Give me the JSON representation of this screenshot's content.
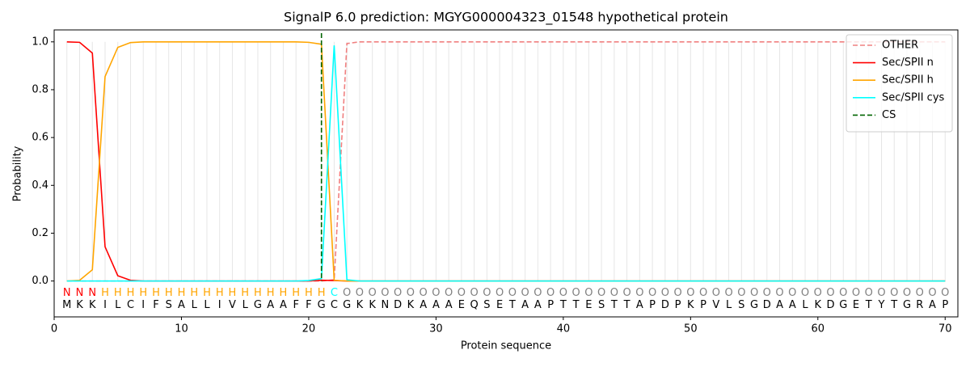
{
  "chart_data": {
    "type": "line",
    "title": "SignalP 6.0 prediction: MGYG000004323_01548 hypothetical protein",
    "x_label": "Protein sequence",
    "y_label": "Probability",
    "xlim": [
      0,
      71
    ],
    "ylim": [
      -0.15,
      1.05
    ],
    "xticks": [
      0,
      10,
      20,
      30,
      40,
      50,
      60,
      70
    ],
    "yticks": [
      {
        "value": 0,
        "label": "0.0"
      },
      {
        "value": 0.2,
        "label": "0.2"
      },
      {
        "value": 0.4,
        "label": "0.4"
      },
      {
        "value": 0.6,
        "label": "0.6"
      },
      {
        "value": 0.8,
        "label": "0.8"
      },
      {
        "value": 1,
        "label": "1.0"
      }
    ],
    "x": [
      1,
      2,
      3,
      4,
      5,
      6,
      7,
      8,
      9,
      10,
      11,
      12,
      13,
      14,
      15,
      16,
      17,
      18,
      19,
      20,
      21,
      22,
      23,
      24,
      25,
      26,
      27,
      28,
      29,
      30,
      31,
      32,
      33,
      34,
      35,
      36,
      37,
      38,
      39,
      40,
      41,
      42,
      43,
      44,
      45,
      46,
      47,
      48,
      49,
      50,
      51,
      52,
      53,
      54,
      55,
      56,
      57,
      58,
      59,
      60,
      61,
      62,
      63,
      64,
      65,
      66,
      67,
      68,
      69,
      70
    ],
    "sequence": [
      "M",
      "K",
      "K",
      "I",
      "L",
      "C",
      "I",
      "F",
      "S",
      "A",
      "L",
      "L",
      "I",
      "V",
      "L",
      "G",
      "A",
      "A",
      "F",
      "F",
      "G",
      "C",
      "G",
      "K",
      "K",
      "N",
      "D",
      "K",
      "A",
      "A",
      "A",
      "E",
      "Q",
      "S",
      "E",
      "T",
      "A",
      "A",
      "P",
      "T",
      "T",
      "E",
      "S",
      "T",
      "T",
      "A",
      "P",
      "D",
      "P",
      "K",
      "P",
      "V",
      "L",
      "S",
      "G",
      "D",
      "A",
      "A",
      "L",
      "K",
      "D",
      "G",
      "E",
      "T",
      "Y",
      "T",
      "G",
      "R",
      "A",
      "P"
    ],
    "regions": [
      "N",
      "N",
      "N",
      "H",
      "H",
      "H",
      "H",
      "H",
      "H",
      "H",
      "H",
      "H",
      "H",
      "H",
      "H",
      "H",
      "H",
      "H",
      "H",
      "H",
      "H",
      "C",
      "O",
      "O",
      "O",
      "O",
      "O",
      "O",
      "O",
      "O",
      "O",
      "O",
      "O",
      "O",
      "O",
      "O",
      "O",
      "O",
      "O",
      "O",
      "O",
      "O",
      "O",
      "O",
      "O",
      "O",
      "O",
      "O",
      "O",
      "O",
      "O",
      "O",
      "O",
      "O",
      "O",
      "O",
      "O",
      "O",
      "O",
      "O",
      "O",
      "O",
      "O",
      "O",
      "O",
      "O",
      "O",
      "O",
      "O",
      "O"
    ],
    "region_colors": {
      "N": "#ff0000",
      "H": "#ffa500",
      "C": "#00ffff",
      "O": "#808080"
    },
    "series": [
      {
        "name": "OTHER",
        "color": "#f08080",
        "linestyle": "dashed",
        "values": [
          0,
          0,
          0,
          0,
          0,
          0,
          0,
          0,
          0,
          0,
          0,
          0,
          0,
          0,
          0,
          0,
          0,
          0,
          0,
          0,
          0,
          0.005,
          0.993,
          1,
          1,
          1,
          1,
          1,
          1,
          1,
          1,
          1,
          1,
          1,
          1,
          1,
          1,
          1,
          1,
          1,
          1,
          1,
          1,
          1,
          1,
          1,
          1,
          1,
          1,
          1,
          1,
          1,
          1,
          1,
          1,
          1,
          1,
          1,
          1,
          1,
          1,
          1,
          1,
          1,
          1,
          1,
          1,
          1,
          1,
          1
        ]
      },
      {
        "name": "Sec/SPII n",
        "color": "#ff0000",
        "linestyle": "solid",
        "values": [
          1,
          0.998,
          0.953,
          0.143,
          0.022,
          0.003,
          0,
          0,
          0,
          0,
          0,
          0,
          0,
          0,
          0,
          0,
          0,
          0,
          0,
          0,
          0.003,
          0.002,
          0,
          0,
          0,
          0,
          0,
          0,
          0,
          0,
          0,
          0,
          0,
          0,
          0,
          0,
          0,
          0,
          0,
          0,
          0,
          0,
          0,
          0,
          0,
          0,
          0,
          0,
          0,
          0,
          0,
          0,
          0,
          0,
          0,
          0,
          0,
          0,
          0,
          0,
          0,
          0,
          0,
          0,
          0,
          0,
          0,
          0,
          0,
          0
        ]
      },
      {
        "name": "Sec/SPII h",
        "color": "#ffa500",
        "linestyle": "solid",
        "values": [
          0,
          0.003,
          0.047,
          0.855,
          0.977,
          0.997,
          1,
          1,
          1,
          1,
          1,
          1,
          1,
          1,
          1,
          1,
          1,
          1,
          1,
          0.998,
          0.99,
          0.003,
          0,
          0,
          0,
          0,
          0,
          0,
          0,
          0,
          0,
          0,
          0,
          0,
          0,
          0,
          0,
          0,
          0,
          0,
          0,
          0,
          0,
          0,
          0,
          0,
          0,
          0,
          0,
          0,
          0,
          0,
          0,
          0,
          0,
          0,
          0,
          0,
          0,
          0,
          0,
          0,
          0,
          0,
          0,
          0,
          0,
          0,
          0,
          0
        ]
      },
      {
        "name": "Sec/SPII cys",
        "color": "#00ffff",
        "linestyle": "solid",
        "values": [
          0,
          0,
          0,
          0,
          0,
          0,
          0,
          0,
          0,
          0,
          0,
          0,
          0,
          0,
          0,
          0,
          0,
          0,
          0,
          0.002,
          0.01,
          0.985,
          0.005,
          0,
          0,
          0,
          0,
          0,
          0,
          0,
          0,
          0,
          0,
          0,
          0,
          0,
          0,
          0,
          0,
          0,
          0,
          0,
          0,
          0,
          0,
          0,
          0,
          0,
          0,
          0,
          0,
          0,
          0,
          0,
          0,
          0,
          0,
          0,
          0,
          0,
          0,
          0,
          0,
          0,
          0,
          0,
          0,
          0,
          0,
          0
        ]
      }
    ],
    "cs": {
      "name": "CS",
      "x": 21,
      "color": "#006400"
    },
    "legend": "upper right",
    "grid": true
  }
}
